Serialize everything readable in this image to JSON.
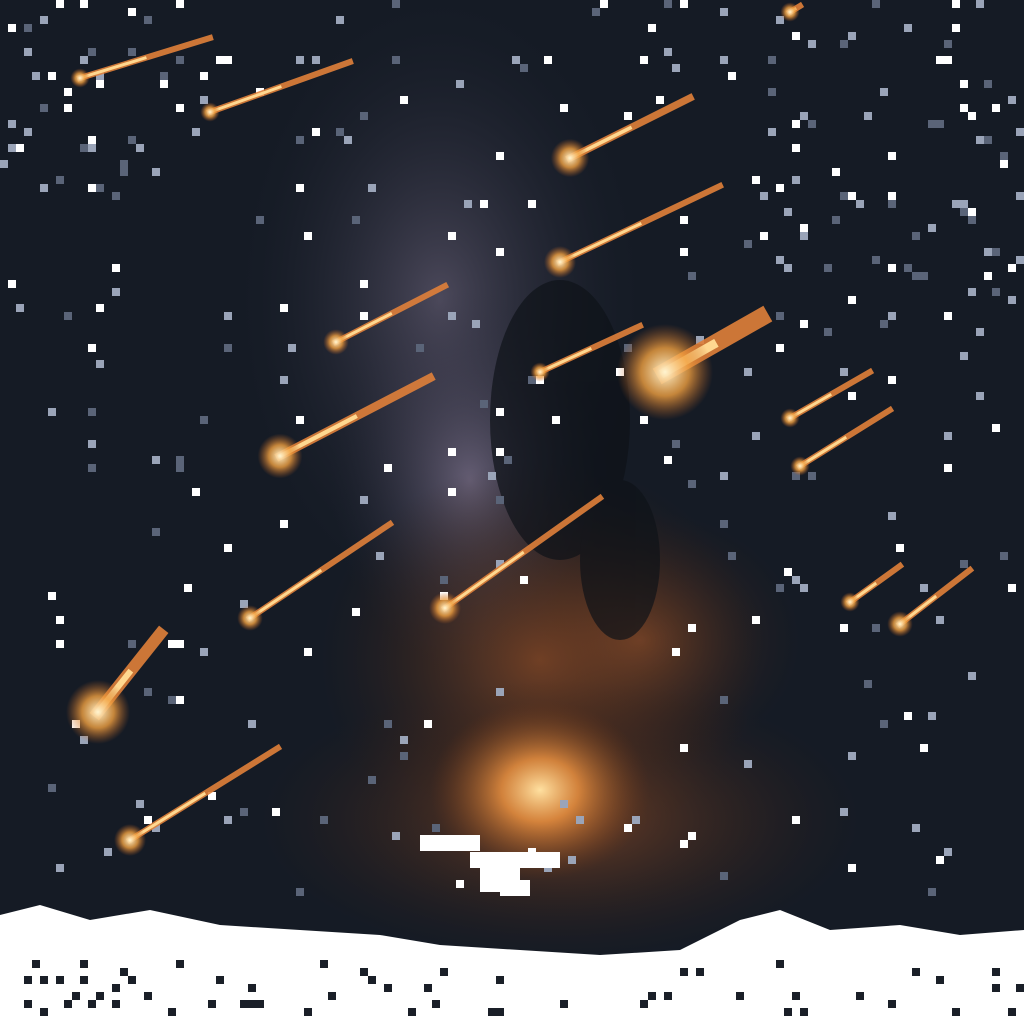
{
  "scene": {
    "subject": "milky-way-meteor-shower",
    "style": "pixelated",
    "colors": {
      "sky_dark": "#141a24",
      "sky_mid": "#1e2634",
      "nebula_purple": "#8a7a96",
      "nebula_warm": "#8a4a28",
      "core_glow": "#f0b060",
      "meteor_head": "#ffd890",
      "meteor_trail": "#e0803a",
      "star": "#ffffff",
      "ground_snow": "#ffffff"
    },
    "meteor_count": 18
  }
}
